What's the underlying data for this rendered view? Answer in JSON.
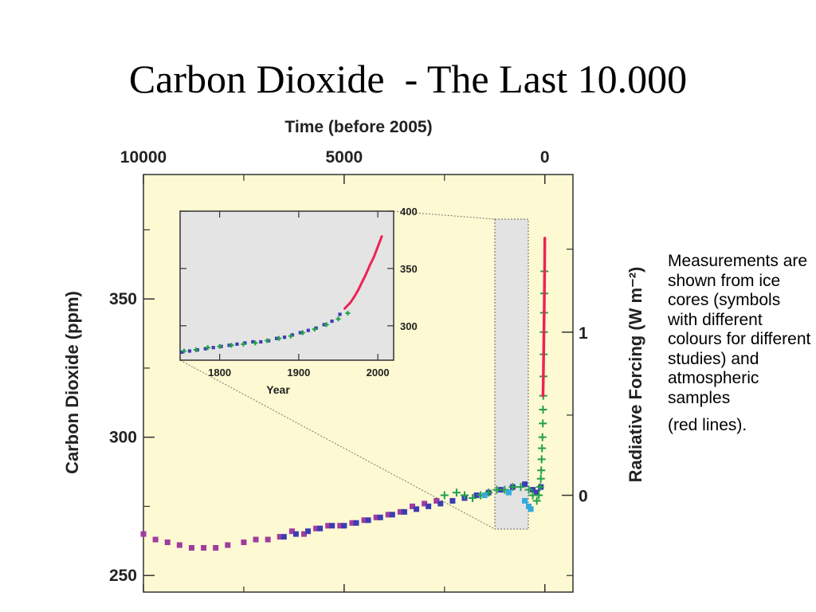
{
  "slide": {
    "title": "Carbon Dioxide  - The Last 10.000",
    "caption": "Measurements are shown from ice cores (symbols with different colours for different studies) and atmospheric samples",
    "caption_tail": "(red lines)."
  },
  "colors": {
    "plot_bg": "#fdf9d2",
    "inset_bg": "#e4e4e4",
    "highlight_bg": "#e3e3e3",
    "ice_core_a": "#a03ca0",
    "ice_core_b": "#3c3cb4",
    "ice_core_c": "#22a04a",
    "ice_core_d": "#33aadd",
    "atmospheric": "#ee2255"
  },
  "chart_data": [
    {
      "type": "scatter",
      "title": "",
      "top_axis_label": "Time (before 2005)",
      "top_ticks": [
        "10000",
        "5000",
        "0"
      ],
      "top_xlim": [
        10000,
        -700
      ],
      "ylabel": "Carbon Dioxide (ppm)",
      "yticks": [
        250,
        300,
        350
      ],
      "ylim": [
        244,
        395
      ],
      "right_axis_label": "Radiative Forcing (W m⁻²)",
      "right_ticks": [
        {
          "label": "0",
          "co2": 279
        },
        {
          "label": "1",
          "co2": 338
        }
      ],
      "grid": false,
      "series": [
        {
          "color": "#a03ca0",
          "marker": "square",
          "points": [
            [
              10000,
              265
            ],
            [
              9700,
              263
            ],
            [
              9400,
              262
            ],
            [
              9100,
              261
            ],
            [
              8800,
              260
            ],
            [
              8500,
              260
            ],
            [
              8200,
              260
            ],
            [
              7900,
              261
            ],
            [
              7500,
              262
            ],
            [
              7200,
              263
            ],
            [
              6900,
              263
            ],
            [
              6600,
              264
            ],
            [
              6300,
              266
            ],
            [
              6000,
              265
            ],
            [
              5700,
              267
            ],
            [
              5400,
              268
            ],
            [
              5100,
              268
            ],
            [
              4800,
              269
            ],
            [
              4500,
              270
            ],
            [
              4200,
              271
            ],
            [
              3900,
              272
            ],
            [
              3600,
              273
            ],
            [
              3300,
              275
            ],
            [
              3000,
              276
            ],
            [
              2700,
              277
            ]
          ]
        },
        {
          "color": "#3c3cb4",
          "marker": "square",
          "points": [
            [
              6500,
              264
            ],
            [
              6200,
              265
            ],
            [
              5900,
              266
            ],
            [
              5600,
              267
            ],
            [
              5300,
              268
            ],
            [
              5000,
              268
            ],
            [
              4700,
              269
            ],
            [
              4400,
              270
            ],
            [
              4100,
              271
            ],
            [
              3800,
              272
            ],
            [
              3500,
              273
            ],
            [
              3200,
              274
            ],
            [
              2900,
              275
            ],
            [
              2600,
              276
            ],
            [
              2300,
              277
            ],
            [
              2000,
              278
            ],
            [
              1700,
              279
            ],
            [
              1400,
              280
            ],
            [
              1100,
              281
            ],
            [
              800,
              282
            ],
            [
              500,
              283
            ],
            [
              300,
              281
            ],
            [
              200,
              280
            ],
            [
              100,
              282
            ]
          ]
        },
        {
          "color": "#22a04a",
          "marker": "plus",
          "points": [
            [
              2500,
              279
            ],
            [
              2200,
              280
            ],
            [
              2000,
              279
            ],
            [
              1800,
              278
            ],
            [
              1600,
              279
            ],
            [
              1400,
              280
            ],
            [
              1200,
              281
            ],
            [
              1000,
              281
            ],
            [
              800,
              282
            ],
            [
              600,
              282
            ],
            [
              400,
              281
            ],
            [
              300,
              279
            ],
            [
              200,
              277
            ],
            [
              150,
              279
            ],
            [
              120,
              282
            ],
            [
              100,
              285
            ],
            [
              90,
              288
            ],
            [
              80,
              292
            ],
            [
              70,
              296
            ],
            [
              60,
              300
            ],
            [
              50,
              305
            ],
            [
              45,
              310
            ],
            [
              40,
              315
            ],
            [
              35,
              322
            ],
            [
              30,
              330
            ],
            [
              25,
              338
            ],
            [
              20,
              345
            ],
            [
              15,
              352
            ],
            [
              10,
              360
            ]
          ]
        },
        {
          "color": "#33aadd",
          "marker": "square",
          "points": [
            [
              1500,
              279
            ],
            [
              900,
              280
            ],
            [
              500,
              277
            ],
            [
              400,
              275
            ],
            [
              350,
              274
            ]
          ]
        },
        {
          "color": "#ee2255",
          "marker": "line",
          "points": [
            [
              47,
              315
            ],
            [
              40,
              320
            ],
            [
              35,
              325
            ],
            [
              30,
              330
            ],
            [
              25,
              336
            ],
            [
              20,
              341
            ],
            [
              15,
              347
            ],
            [
              10,
              354
            ],
            [
              5,
              362
            ],
            [
              1,
              372
            ]
          ]
        }
      ]
    },
    {
      "type": "scatter",
      "title": "",
      "xlabel": "Year",
      "xticks": [
        1800,
        1900,
        2000
      ],
      "xlim": [
        1750,
        2020
      ],
      "yticks": [
        300,
        350,
        400
      ],
      "ylim": [
        270,
        400
      ],
      "grid": false,
      "series": [
        {
          "color": "#3c3cb4",
          "marker": "square",
          "points": [
            [
              1752,
              277
            ],
            [
              1762,
              278
            ],
            [
              1772,
              279
            ],
            [
              1782,
              280
            ],
            [
              1792,
              281
            ],
            [
              1802,
              282
            ],
            [
              1812,
              283
            ],
            [
              1822,
              284
            ],
            [
              1832,
              285
            ],
            [
              1842,
              286
            ],
            [
              1852,
              286
            ],
            [
              1862,
              287
            ],
            [
              1872,
              289
            ],
            [
              1882,
              290
            ],
            [
              1892,
              292
            ],
            [
              1902,
              294
            ],
            [
              1912,
              296
            ],
            [
              1922,
              298
            ],
            [
              1932,
              301
            ],
            [
              1942,
              304
            ],
            [
              1952,
              310
            ]
          ]
        },
        {
          "color": "#22a04a",
          "marker": "plus",
          "points": [
            [
              1755,
              278
            ],
            [
              1770,
              279
            ],
            [
              1785,
              281
            ],
            [
              1800,
              282
            ],
            [
              1815,
              283
            ],
            [
              1830,
              284
            ],
            [
              1845,
              285
            ],
            [
              1860,
              287
            ],
            [
              1875,
              289
            ],
            [
              1890,
              291
            ],
            [
              1905,
              294
            ],
            [
              1920,
              297
            ],
            [
              1935,
              301
            ],
            [
              1950,
              306
            ],
            [
              1962,
              311
            ]
          ]
        },
        {
          "color": "#ee2255",
          "marker": "line",
          "points": [
            [
              1958,
              315
            ],
            [
              1965,
              320
            ],
            [
              1970,
              325
            ],
            [
              1975,
              331
            ],
            [
              1980,
              338
            ],
            [
              1985,
              345
            ],
            [
              1990,
              353
            ],
            [
              1995,
              360
            ],
            [
              2000,
              369
            ],
            [
              2005,
              378
            ]
          ]
        }
      ]
    }
  ]
}
